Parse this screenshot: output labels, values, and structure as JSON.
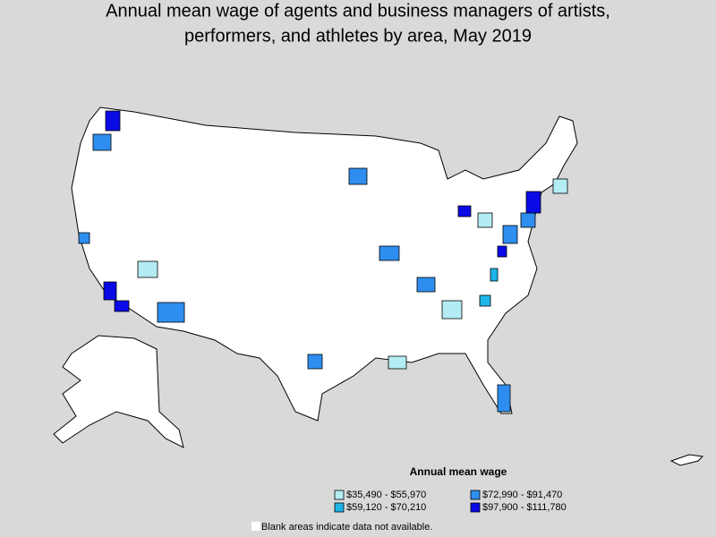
{
  "header": {
    "title_lines": [
      "Annual mean wage of agents and business managers of artists,",
      "performers, and athletes by area, May 2019"
    ]
  },
  "legend": {
    "title": "Annual mean wage",
    "items": [
      {
        "label": "$35,490 - $55,970",
        "color": "#b3ecf2"
      },
      {
        "label": "$59,120 - $70,210",
        "color": "#1eb6e8"
      },
      {
        "label": "$72,990 - $91,470",
        "color": "#2e8ef0"
      },
      {
        "label": "$97,900 - $111,780",
        "color": "#0a0ae6"
      }
    ]
  },
  "footnote": "Blank areas indicate data not available."
}
